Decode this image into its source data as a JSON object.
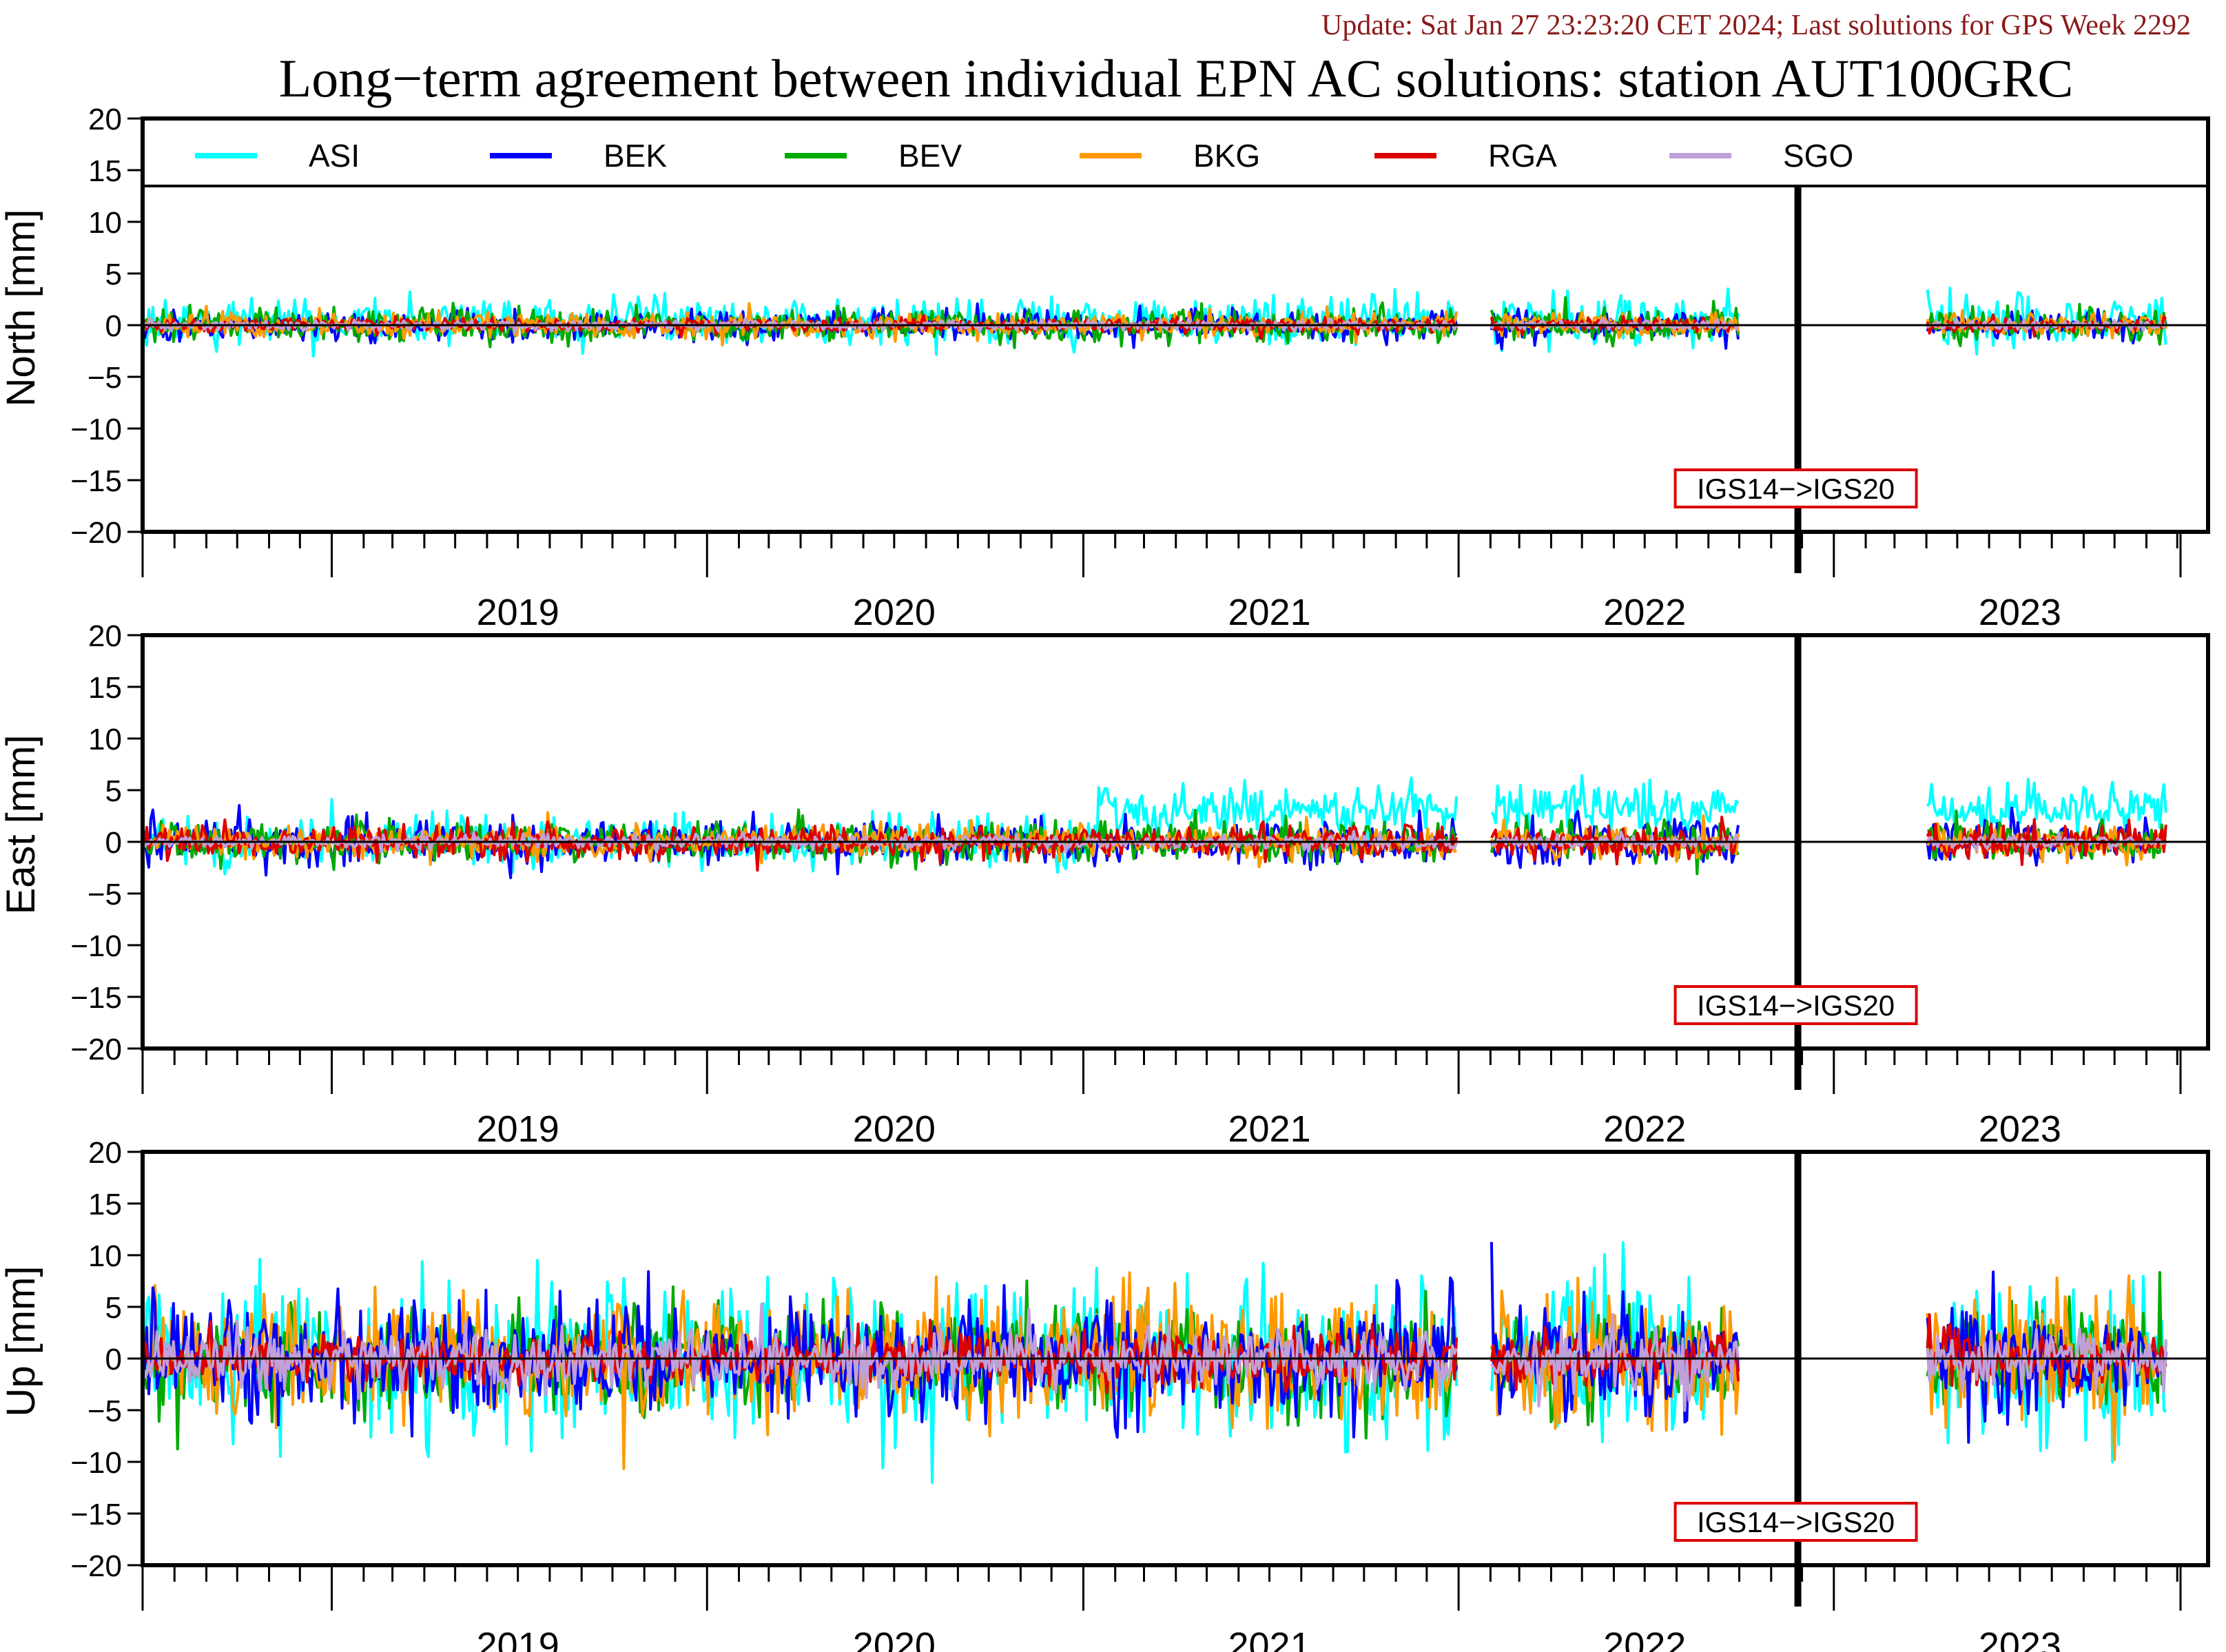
{
  "update_text": "Update: Sat Jan 27 23:23:20 CET 2024; Last solutions for GPS Week 2292",
  "chart_data": {
    "type": "line",
    "title": "Long−term agreement between individual EPN AC solutions: station AUT100GRC",
    "x_start": "2018-07-01",
    "x_end": "2023-12-31",
    "year_labels": [
      "2019",
      "2020",
      "2021",
      "2022",
      "2023"
    ],
    "ylim": [
      -20,
      20
    ],
    "yticks": [
      "−20",
      "−15",
      "−10",
      "−5",
      "0",
      "5",
      "10",
      "15",
      "20"
    ],
    "reference_change": {
      "date": "2022-11-27",
      "label": "IGS14−>IGS20"
    },
    "data_gaps": [
      [
        "2022-01-01",
        "2022-01-31"
      ],
      [
        "2022-10-01",
        "2023-03-31"
      ]
    ],
    "legend": {
      "placement": "top",
      "entries": [
        "ASI",
        "BEK",
        "BEV",
        "BKG",
        "RGA",
        "SGO"
      ]
    },
    "series_colors": {
      "ASI": "#00ffff",
      "BEK": "#0000ff",
      "BEV": "#00aa00",
      "BKG": "#ff9900",
      "RGA": "#dd0000",
      "SGO": "#c0a0d8"
    },
    "panels": [
      {
        "ylabel": "North [mm]",
        "show_legend": true,
        "spread_mm": {
          "ASI": 1.4,
          "BEK": 0.9,
          "BEV": 1.0,
          "BKG": 0.7,
          "RGA": 0.4,
          "SGO": 0.3
        }
      },
      {
        "ylabel": "East [mm]",
        "show_legend": false,
        "spread_mm": {
          "ASI": 1.5,
          "BEK": 1.4,
          "BEV": 1.2,
          "BKG": 1.0,
          "RGA": 1.0,
          "SGO": 0.4
        }
      },
      {
        "ylabel": "Up [mm]",
        "show_legend": false,
        "spread_mm": {
          "ASI": 4.5,
          "BEK": 3.5,
          "BEV": 3.2,
          "BKG": 3.8,
          "RGA": 1.5,
          "SGO": 1.8
        }
      }
    ]
  }
}
